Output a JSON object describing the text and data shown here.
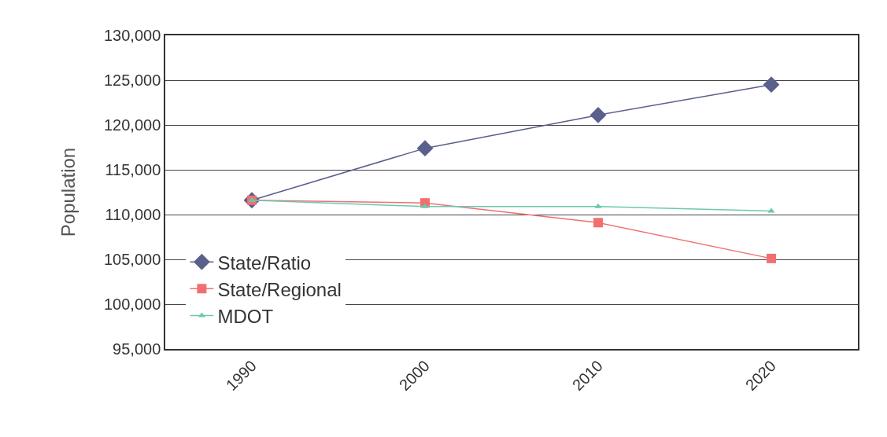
{
  "chart_data": {
    "type": "line",
    "ylabel": "Population",
    "categories": [
      "1990",
      "2000",
      "2010",
      "2020"
    ],
    "series": [
      {
        "name": "State/Ratio",
        "color": "#5a5f8c",
        "marker": "diamond",
        "values": [
          111600,
          117400,
          121100,
          124500
        ]
      },
      {
        "name": "State/Regional",
        "color": "#f07070",
        "marker": "square",
        "values": [
          111600,
          111300,
          109100,
          105100
        ]
      },
      {
        "name": "MDOT",
        "color": "#6cc8b0",
        "marker": "triangle",
        "values": [
          111600,
          110900,
          110900,
          110400
        ]
      }
    ],
    "ylim": [
      95000,
      130000
    ],
    "yticks": [
      {
        "value": 95000,
        "label": "95,000"
      },
      {
        "value": 100000,
        "label": "100,000"
      },
      {
        "value": 105000,
        "label": "105,000"
      },
      {
        "value": 110000,
        "label": "110,000"
      },
      {
        "value": 115000,
        "label": "115,000"
      },
      {
        "value": 120000,
        "label": "120,000"
      },
      {
        "value": 125000,
        "label": "125,000"
      },
      {
        "value": 130000,
        "label": "130,000"
      }
    ],
    "grid": "y",
    "legend": "bottom left",
    "line_style": "solid"
  }
}
